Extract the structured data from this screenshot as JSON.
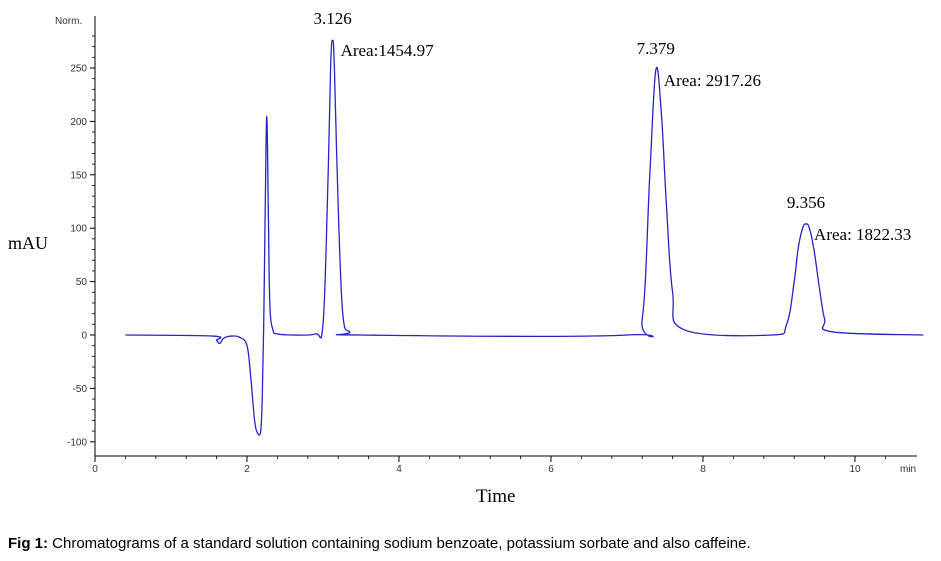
{
  "chart_data": {
    "type": "line",
    "title": "",
    "xlabel": "Time",
    "ylabel": "mAU",
    "y_unit_label": "Norm.",
    "x_unit_label": "min",
    "xlim": [
      0,
      10.8
    ],
    "ylim": [
      -110,
      295
    ],
    "x_ticks": [
      0,
      2,
      4,
      6,
      8,
      10
    ],
    "y_ticks": [
      -100,
      -50,
      0,
      50,
      100,
      150,
      200,
      250
    ],
    "x_tick_labels": [
      "0",
      "2",
      "4",
      "6",
      "8",
      "10"
    ],
    "y_tick_labels": [
      "-100",
      "-50",
      "0",
      "50",
      "100",
      "150",
      "200",
      "250"
    ],
    "grid": false,
    "line_color": "#2424c8",
    "series": [
      {
        "x": [
          0.4,
          1.55,
          1.6,
          1.64,
          1.68,
          1.72,
          1.8,
          1.9,
          2.0,
          2.05,
          2.1,
          2.14,
          2.18,
          2.2,
          2.22,
          2.24,
          2.26,
          2.28,
          2.3,
          2.34,
          2.4,
          2.6,
          2.9,
          3.0,
          3.06,
          3.1,
          3.126,
          3.15,
          3.2,
          3.26,
          3.35,
          3.5,
          7.0,
          7.2,
          7.3,
          7.379,
          7.45,
          7.52,
          7.6,
          7.75,
          8.9,
          9.1,
          9.2,
          9.25,
          9.31,
          9.356,
          9.4,
          9.46,
          9.53,
          9.6,
          9.7,
          10.9
        ],
        "y": [
          0,
          -1,
          -5,
          -8,
          -4,
          -2,
          -1,
          -2,
          -10,
          -40,
          -80,
          -92,
          -90,
          -60,
          10,
          120,
          205,
          120,
          30,
          5,
          1,
          0,
          1,
          10,
          130,
          250,
          276,
          250,
          120,
          20,
          3,
          0,
          0,
          15,
          150,
          248,
          210,
          120,
          40,
          5,
          0,
          10,
          50,
          80,
          100,
          104,
          100,
          80,
          45,
          15,
          3,
          0
        ]
      }
    ],
    "annotations": [
      {
        "x": 3.126,
        "y": 276,
        "label": "3.126",
        "area": "Area:1454.97"
      },
      {
        "x": 7.379,
        "y": 248,
        "label": "7.379",
        "area": "Area: 2917.26"
      },
      {
        "x": 9.356,
        "y": 104,
        "label": "9.356",
        "area": "Area: 1822.33"
      }
    ]
  },
  "caption": {
    "label": "Fig 1:",
    "text": " Chromatograms of a standard solution containing sodium benzoate, potassium sorbate and also caffeine."
  }
}
